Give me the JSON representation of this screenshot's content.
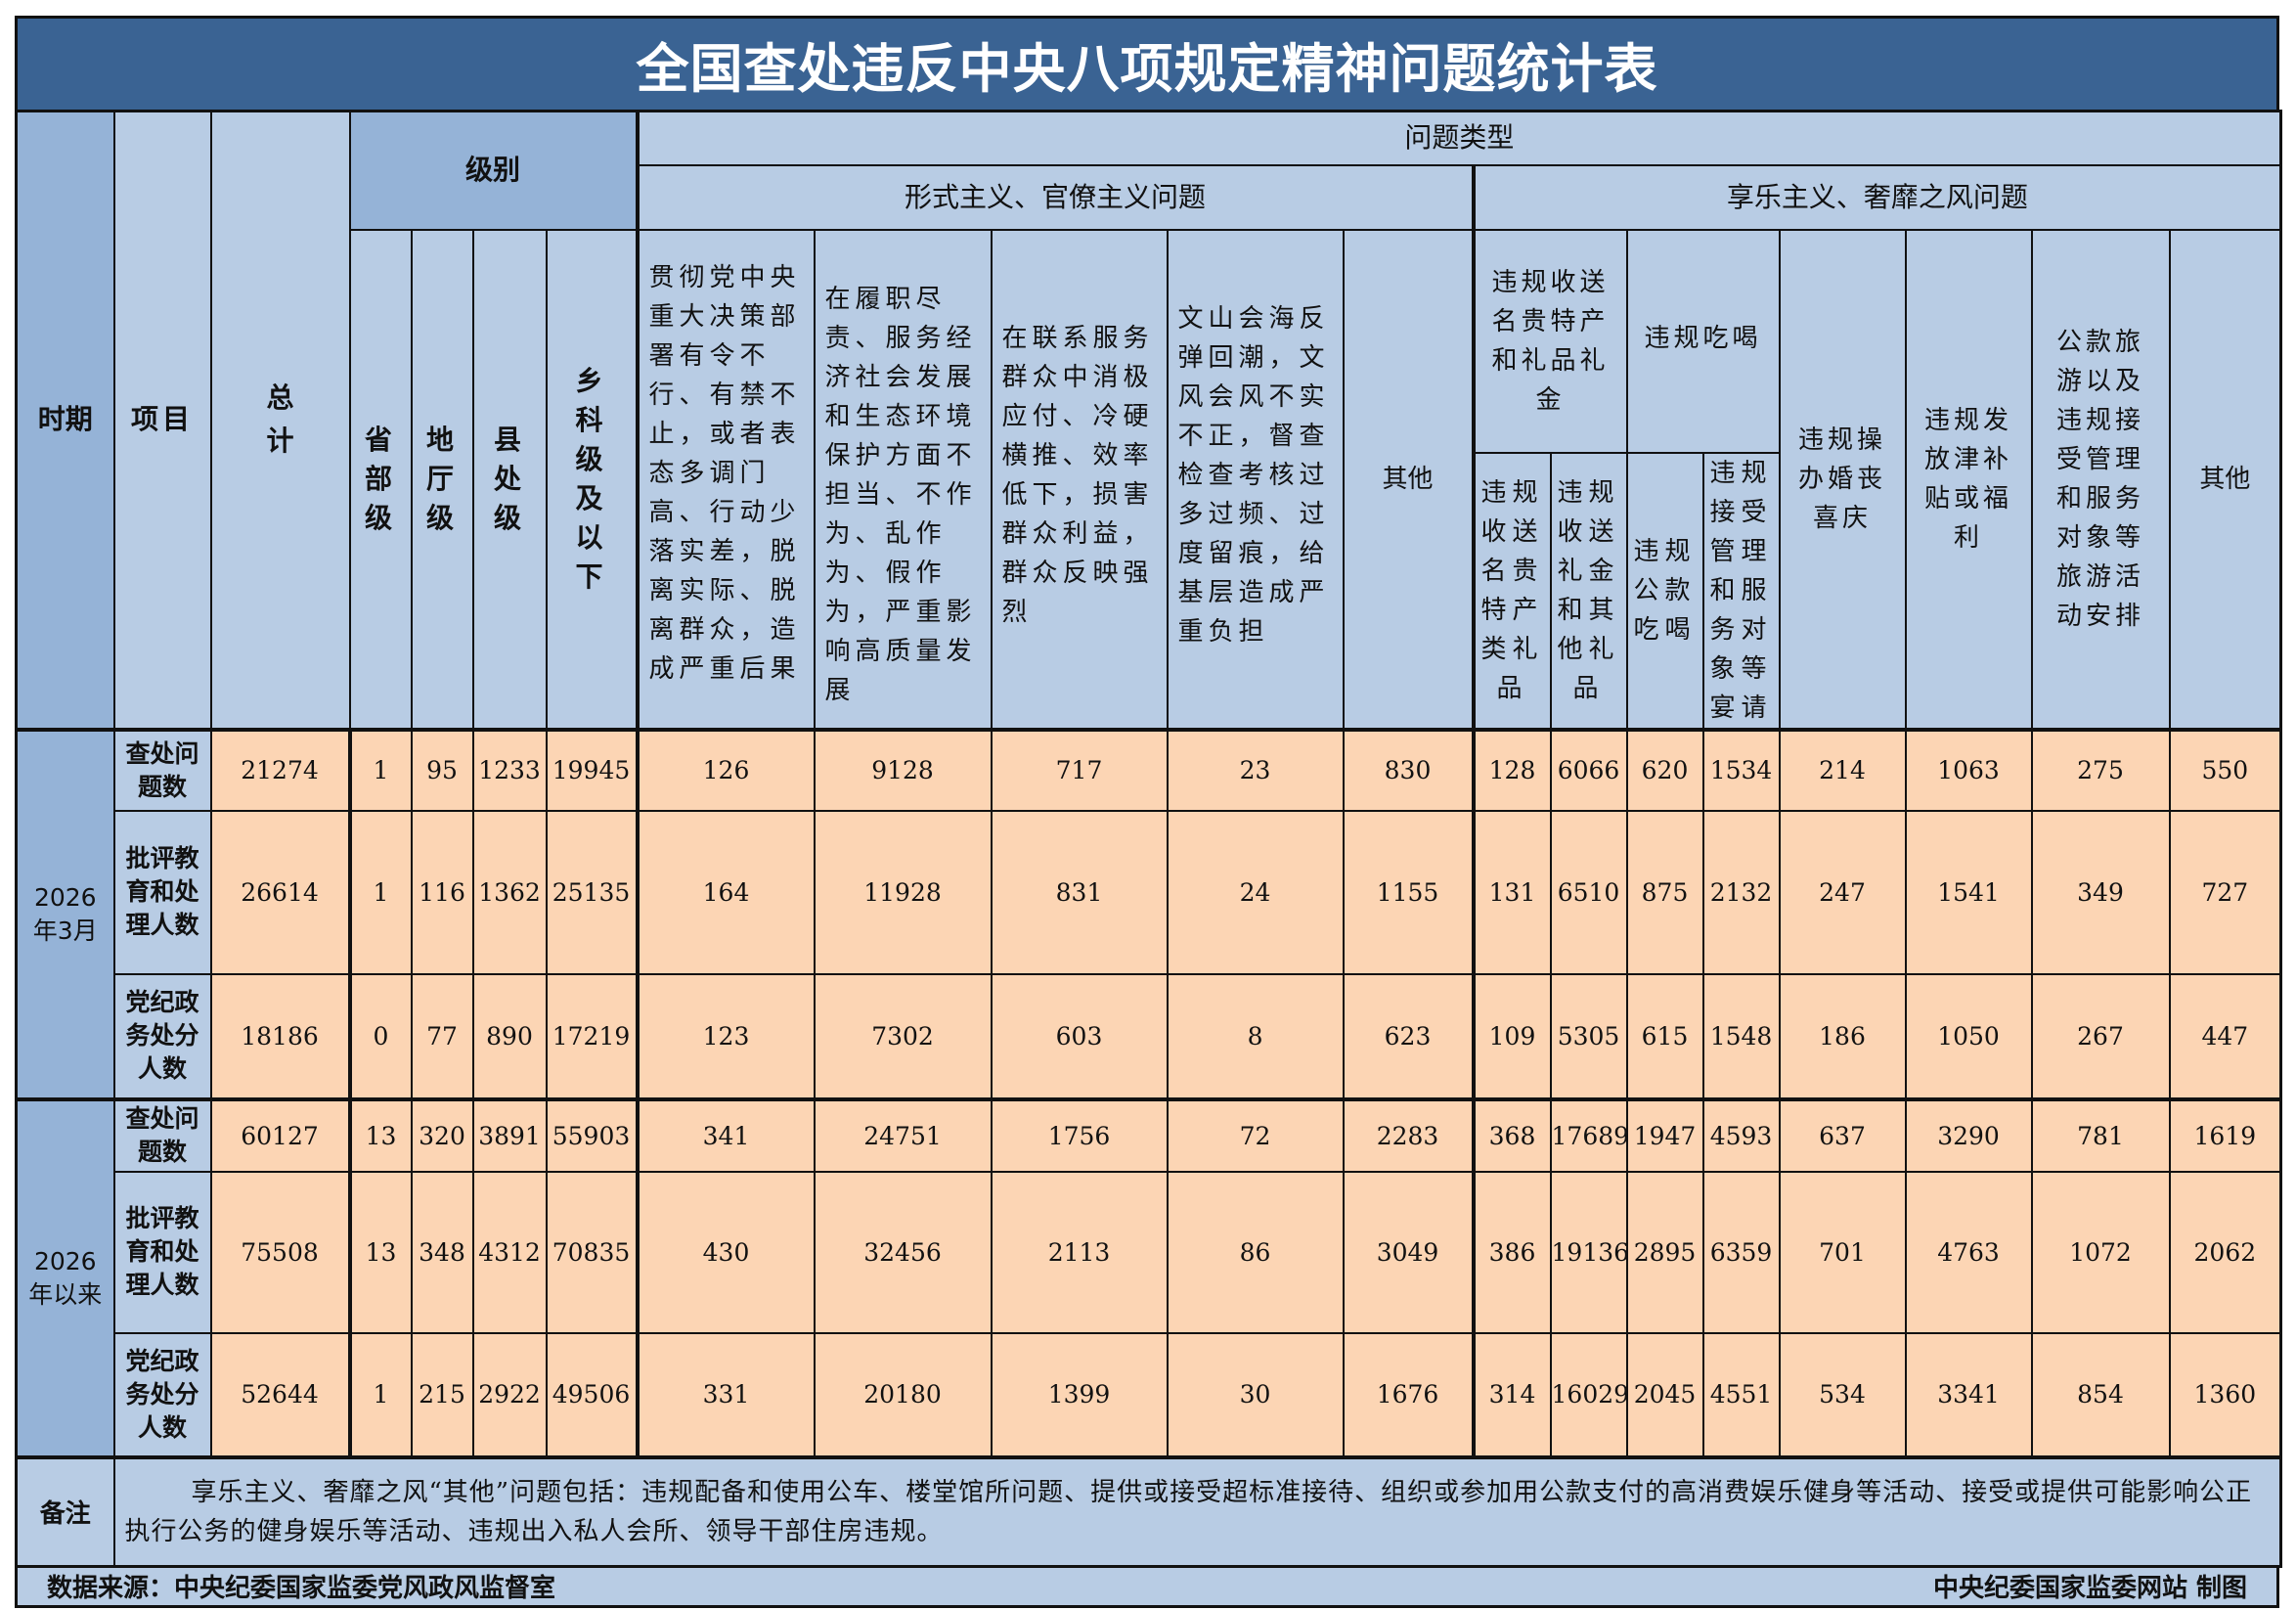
{
  "title": "全国查处违反中央八项规定精神问题统计表",
  "header": {
    "period": "时期",
    "item": "项目",
    "total": "总计",
    "level": "级别",
    "levels": [
      "省部级",
      "地厅级",
      "县处级",
      "乡科级及以下"
    ],
    "problem_type": "问题类型",
    "formalism": {
      "label": "形式主义、官僚主义问题",
      "columns": [
        "贯彻党中央重大决策部署有令不行、有禁不止，或者表态多调门高、行动少落实差，脱离实际、脱离群众，造成严重后果",
        "在履职尽责、服务经济社会发展和生态环境保护方面不担当、不作为、乱作为、假作为，严重影响高质量发展",
        "在联系服务群众中消极应付、冷硬横推、效率低下，损害群众利益，群众反映强烈",
        "文山会海反弹回潮，文风会风不实不正，督查检查考核过多过频、过度留痕，给基层造成严重负担",
        "其他"
      ]
    },
    "hedonism": {
      "label": "享乐主义、奢靡之风问题",
      "gifts": {
        "label": "违规收送名贵特产和礼品礼金",
        "sub": [
          "违规收送名贵特产类礼品",
          "违规收送礼金和其他礼品"
        ]
      },
      "dining": {
        "label": "违规吃喝",
        "sub": [
          "违规公款吃喝",
          "违规接受管理和服务对象等宴请"
        ]
      },
      "columns": [
        "违规操办婚丧喜庆",
        "违规发放津补贴或福利",
        "公款旅游以及违规接受管理和服务对象等旅游活动安排",
        "其他"
      ]
    }
  },
  "groups": [
    {
      "period": "2026年3月",
      "rows": [
        {
          "label": "查处问题数",
          "values": [
            21274,
            1,
            95,
            1233,
            19945,
            126,
            9128,
            717,
            23,
            830,
            128,
            6066,
            620,
            1534,
            214,
            1063,
            275,
            550
          ]
        },
        {
          "label": "批评教育和处理人数",
          "values": [
            26614,
            1,
            116,
            1362,
            25135,
            164,
            11928,
            831,
            24,
            1155,
            131,
            6510,
            875,
            2132,
            247,
            1541,
            349,
            727
          ]
        },
        {
          "label": "党纪政务处分人数",
          "values": [
            18186,
            0,
            77,
            890,
            17219,
            123,
            7302,
            603,
            8,
            623,
            109,
            5305,
            615,
            1548,
            186,
            1050,
            267,
            447
          ]
        }
      ]
    },
    {
      "period": "2026年以来",
      "rows": [
        {
          "label": "查处问题数",
          "values": [
            60127,
            13,
            320,
            3891,
            55903,
            341,
            24751,
            1756,
            72,
            2283,
            368,
            17689,
            1947,
            4593,
            637,
            3290,
            781,
            1619
          ]
        },
        {
          "label": "批评教育和处理人数",
          "values": [
            75508,
            13,
            348,
            4312,
            70835,
            430,
            32456,
            2113,
            86,
            3049,
            386,
            19136,
            2895,
            6359,
            701,
            4763,
            1072,
            2062
          ]
        },
        {
          "label": "党纪政务处分人数",
          "values": [
            52644,
            1,
            215,
            2922,
            49506,
            331,
            20180,
            1399,
            30,
            1676,
            314,
            16029,
            2045,
            4551,
            534,
            3341,
            854,
            1360
          ]
        }
      ]
    }
  ],
  "note": {
    "label": "备注",
    "text": "享乐主义、奢靡之风“其他”问题包括：违规配备和使用公车、楼堂馆所问题、提供或接受超标准接待、组织或参加用公款支付的高消费娱乐健身等活动、接受或提供可能影响公正执行公务的健身娱乐等活动、违规出入私人会所、领导干部住房违规。"
  },
  "footer": {
    "source": "数据来源：中央纪委国家监委党风政风监督室",
    "credit": "中央纪委国家监委网站 制图"
  },
  "colors": {
    "title_bg": "#3A6393",
    "header_bg": "#B8CCE4",
    "header_dark_bg": "#95B3D7",
    "data_bg": "#FCD5B4"
  }
}
